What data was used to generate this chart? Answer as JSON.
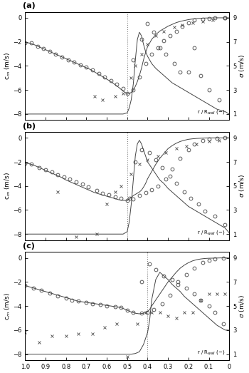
{
  "panels": [
    {
      "label": "(a)",
      "vline_x": 0.5,
      "cm_line_x": [
        1.0,
        0.98,
        0.96,
        0.94,
        0.92,
        0.9,
        0.88,
        0.86,
        0.84,
        0.82,
        0.8,
        0.78,
        0.76,
        0.74,
        0.72,
        0.7,
        0.68,
        0.66,
        0.64,
        0.62,
        0.6,
        0.58,
        0.56,
        0.54,
        0.52,
        0.5,
        0.49,
        0.48,
        0.47,
        0.46,
        0.45,
        0.44,
        0.43,
        0.42,
        0.41,
        0.4,
        0.38,
        0.36,
        0.34,
        0.32,
        0.3,
        0.28,
        0.26,
        0.24,
        0.22,
        0.2,
        0.18,
        0.16,
        0.14,
        0.12,
        0.1,
        0.08,
        0.06,
        0.04,
        0.02,
        0.01,
        0.0
      ],
      "cm_line_y": [
        -2.05,
        -2.1,
        -2.2,
        -2.35,
        -2.5,
        -2.65,
        -2.8,
        -2.95,
        -3.1,
        -3.25,
        -3.4,
        -3.55,
        -3.7,
        -3.85,
        -4.0,
        -4.15,
        -4.3,
        -4.5,
        -4.7,
        -4.9,
        -5.1,
        -5.3,
        -5.55,
        -5.8,
        -6.1,
        -6.3,
        -6.3,
        -6.2,
        -6.0,
        -5.7,
        -5.3,
        -4.8,
        -4.2,
        -3.5,
        -2.9,
        -2.4,
        -1.8,
        -1.4,
        -1.1,
        -0.9,
        -0.7,
        -0.55,
        -0.4,
        -0.3,
        -0.22,
        -0.15,
        -0.1,
        -0.06,
        -0.04,
        -0.02,
        -0.01,
        -0.005,
        0.0,
        0.0,
        0.0,
        0.0,
        0.0
      ],
      "sigma_line_x": [
        1.0,
        0.98,
        0.96,
        0.94,
        0.92,
        0.9,
        0.88,
        0.86,
        0.84,
        0.82,
        0.8,
        0.78,
        0.76,
        0.74,
        0.72,
        0.7,
        0.68,
        0.66,
        0.64,
        0.62,
        0.6,
        0.58,
        0.56,
        0.54,
        0.52,
        0.5,
        0.49,
        0.48,
        0.47,
        0.46,
        0.45,
        0.44,
        0.43,
        0.42,
        0.41,
        0.4,
        0.38,
        0.36,
        0.34,
        0.32,
        0.3,
        0.28,
        0.26,
        0.24,
        0.22,
        0.2,
        0.18,
        0.16,
        0.14,
        0.12,
        0.1,
        0.08,
        0.06,
        0.04,
        0.02,
        0.01,
        0.0
      ],
      "sigma_line_y": [
        1.0,
        1.0,
        1.0,
        1.0,
        1.0,
        1.0,
        1.0,
        1.0,
        1.0,
        1.0,
        1.0,
        1.0,
        1.0,
        1.0,
        1.0,
        1.0,
        1.0,
        1.0,
        1.0,
        1.0,
        1.0,
        1.0,
        1.0,
        1.0,
        1.0,
        1.1,
        1.5,
        2.2,
        3.5,
        5.5,
        7.2,
        7.8,
        7.5,
        6.8,
        6.2,
        5.8,
        5.2,
        4.8,
        4.5,
        4.2,
        3.9,
        3.6,
        3.4,
        3.2,
        3.0,
        2.8,
        2.6,
        2.4,
        2.2,
        2.0,
        1.8,
        1.6,
        1.4,
        1.3,
        1.2,
        1.1,
        1.0
      ],
      "cm_circles_x": [
        1.0,
        0.97,
        0.94,
        0.91,
        0.88,
        0.85,
        0.82,
        0.79,
        0.76,
        0.73,
        0.7,
        0.67,
        0.64,
        0.61,
        0.58,
        0.55,
        0.52,
        0.5,
        0.47,
        0.44,
        0.41,
        0.38,
        0.35,
        0.32,
        0.29,
        0.26,
        0.23,
        0.2,
        0.17,
        0.13,
        0.1,
        0.07,
        0.02
      ],
      "cm_circles_y": [
        -2.05,
        -2.1,
        -2.35,
        -2.55,
        -2.8,
        -3.0,
        -3.25,
        -3.5,
        -3.7,
        -3.9,
        -4.1,
        -4.35,
        -4.65,
        -4.9,
        -5.2,
        -5.5,
        -5.9,
        -6.3,
        -6.0,
        -4.9,
        -3.8,
        -3.0,
        -2.5,
        -1.9,
        -1.5,
        -1.1,
        -0.7,
        -0.4,
        -0.2,
        -0.1,
        -0.05,
        -0.02,
        0.0
      ],
      "sigma_circles_x": [
        0.47,
        0.43,
        0.4,
        0.37,
        0.34,
        0.31,
        0.27,
        0.24,
        0.2,
        0.17,
        0.14,
        0.1,
        0.05,
        0.02
      ],
      "sigma_circles_y": [
        5.5,
        7.2,
        8.5,
        7.8,
        6.5,
        6.0,
        5.2,
        4.5,
        4.5,
        6.5,
        4.2,
        3.0,
        2.2,
        9.0
      ],
      "sigma_crosses_x": [
        0.66,
        0.62,
        0.56,
        0.52,
        0.48,
        0.46,
        0.43,
        0.4,
        0.36,
        0.32,
        0.27,
        0.23,
        0.18,
        0.13,
        0.08
      ],
      "sigma_crosses_y": [
        -6.5,
        -6.8,
        -6.5,
        -6.3,
        -5.0,
        -4.0,
        -3.0,
        -2.2,
        -1.5,
        -1.1,
        -0.8,
        -0.6,
        -0.4,
        -0.3,
        -0.2
      ]
    },
    {
      "label": "(b)",
      "vline_x": 0.5,
      "cm_line_x": [
        1.0,
        0.98,
        0.96,
        0.94,
        0.92,
        0.9,
        0.88,
        0.86,
        0.84,
        0.82,
        0.8,
        0.78,
        0.76,
        0.74,
        0.72,
        0.7,
        0.68,
        0.66,
        0.64,
        0.62,
        0.6,
        0.58,
        0.56,
        0.54,
        0.52,
        0.5,
        0.49,
        0.48,
        0.47,
        0.46,
        0.45,
        0.44,
        0.43,
        0.42,
        0.41,
        0.4,
        0.38,
        0.36,
        0.34,
        0.32,
        0.3,
        0.28,
        0.26,
        0.24,
        0.22,
        0.2,
        0.18,
        0.16,
        0.14,
        0.12,
        0.1,
        0.08,
        0.06,
        0.04,
        0.02,
        0.01,
        0.0
      ],
      "cm_line_y": [
        -2.1,
        -2.15,
        -2.25,
        -2.4,
        -2.55,
        -2.7,
        -2.85,
        -3.0,
        -3.15,
        -3.3,
        -3.5,
        -3.65,
        -3.8,
        -3.95,
        -4.1,
        -4.25,
        -4.4,
        -4.55,
        -4.65,
        -4.75,
        -4.85,
        -4.95,
        -5.05,
        -5.15,
        -5.2,
        -5.2,
        -5.1,
        -4.95,
        -4.8,
        -4.7,
        -4.6,
        -4.5,
        -4.35,
        -4.1,
        -3.8,
        -3.4,
        -2.8,
        -2.2,
        -1.7,
        -1.3,
        -0.9,
        -0.65,
        -0.45,
        -0.3,
        -0.2,
        -0.12,
        -0.08,
        -0.05,
        -0.03,
        -0.01,
        0.0,
        0.0,
        0.0,
        0.0,
        0.0,
        0.0,
        0.0
      ],
      "sigma_line_x": [
        1.0,
        0.98,
        0.96,
        0.94,
        0.92,
        0.9,
        0.88,
        0.86,
        0.84,
        0.82,
        0.8,
        0.78,
        0.76,
        0.74,
        0.72,
        0.7,
        0.68,
        0.66,
        0.64,
        0.62,
        0.6,
        0.58,
        0.56,
        0.54,
        0.52,
        0.5,
        0.49,
        0.48,
        0.47,
        0.46,
        0.45,
        0.44,
        0.43,
        0.42,
        0.41,
        0.4,
        0.38,
        0.36,
        0.34,
        0.32,
        0.3,
        0.28,
        0.26,
        0.24,
        0.22,
        0.2,
        0.18,
        0.16,
        0.14,
        0.12,
        0.1,
        0.08,
        0.06,
        0.04,
        0.02,
        0.01,
        0.0
      ],
      "sigma_line_y": [
        1.0,
        1.0,
        1.0,
        1.0,
        1.0,
        1.0,
        1.0,
        1.0,
        1.0,
        1.0,
        1.0,
        1.0,
        1.0,
        1.0,
        1.0,
        1.0,
        1.0,
        1.0,
        1.0,
        1.0,
        1.0,
        1.0,
        1.0,
        1.0,
        1.0,
        1.2,
        2.0,
        3.5,
        5.5,
        7.5,
        8.5,
        8.8,
        8.5,
        8.0,
        7.5,
        7.0,
        6.5,
        6.0,
        5.5,
        5.2,
        4.8,
        4.5,
        4.2,
        3.9,
        3.6,
        3.3,
        3.1,
        2.9,
        2.7,
        2.5,
        2.3,
        2.1,
        1.9,
        1.7,
        1.5,
        1.3,
        1.1
      ],
      "cm_circles_x": [
        1.0,
        0.97,
        0.93,
        0.9,
        0.87,
        0.84,
        0.81,
        0.78,
        0.75,
        0.72,
        0.69,
        0.65,
        0.62,
        0.59,
        0.56,
        0.53,
        0.5,
        0.47,
        0.44,
        0.41,
        0.38,
        0.35,
        0.31,
        0.28,
        0.24,
        0.2,
        0.17,
        0.13,
        0.1,
        0.06,
        0.02
      ],
      "cm_circles_y": [
        -2.1,
        -2.2,
        -2.45,
        -2.65,
        -2.85,
        -3.05,
        -3.25,
        -3.45,
        -3.65,
        -3.85,
        -4.1,
        -4.35,
        -4.6,
        -4.75,
        -4.9,
        -5.05,
        -5.2,
        -5.1,
        -4.8,
        -4.55,
        -4.3,
        -4.0,
        -3.4,
        -2.6,
        -1.7,
        -1.0,
        -0.5,
        -0.2,
        -0.08,
        -0.02,
        0.0
      ],
      "sigma_circles_x": [
        0.49,
        0.46,
        0.43,
        0.39,
        0.36,
        0.33,
        0.29,
        0.26,
        0.22,
        0.19,
        0.15,
        0.12,
        0.07,
        0.02
      ],
      "sigma_circles_y": [
        4.0,
        7.0,
        8.0,
        7.8,
        7.2,
        6.5,
        5.8,
        5.2,
        4.5,
        4.0,
        3.5,
        2.9,
        2.5,
        1.8
      ],
      "sigma_crosses_x": [
        0.84,
        0.75,
        0.65,
        0.6,
        0.56,
        0.53,
        0.48,
        0.44,
        0.4,
        0.35,
        0.31,
        0.26,
        0.21,
        0.16,
        0.1,
        0.05
      ],
      "sigma_crosses_y": [
        -4.5,
        -8.2,
        -8.0,
        -5.5,
        -4.5,
        -4.0,
        -3.0,
        -2.2,
        -1.8,
        -1.5,
        -1.2,
        -0.9,
        -0.7,
        -0.5,
        -0.3,
        -0.2
      ]
    },
    {
      "label": "(c)",
      "vline_x": 0.4,
      "cm_line_x": [
        1.0,
        0.98,
        0.96,
        0.94,
        0.92,
        0.9,
        0.88,
        0.86,
        0.84,
        0.82,
        0.8,
        0.78,
        0.76,
        0.74,
        0.72,
        0.7,
        0.68,
        0.66,
        0.64,
        0.62,
        0.6,
        0.58,
        0.56,
        0.54,
        0.52,
        0.5,
        0.48,
        0.46,
        0.44,
        0.42,
        0.4,
        0.39,
        0.38,
        0.36,
        0.34,
        0.32,
        0.3,
        0.28,
        0.26,
        0.24,
        0.22,
        0.2,
        0.18,
        0.16,
        0.14,
        0.12,
        0.1,
        0.08,
        0.06,
        0.04,
        0.02,
        0.01,
        0.0
      ],
      "cm_line_y": [
        -2.3,
        -2.4,
        -2.5,
        -2.6,
        -2.7,
        -2.8,
        -2.9,
        -3.0,
        -3.1,
        -3.2,
        -3.3,
        -3.4,
        -3.5,
        -3.6,
        -3.65,
        -3.7,
        -3.75,
        -3.8,
        -3.85,
        -3.9,
        -3.95,
        -4.0,
        -4.05,
        -4.1,
        -4.2,
        -4.35,
        -4.5,
        -4.6,
        -4.65,
        -4.6,
        -4.45,
        -4.3,
        -4.0,
        -3.5,
        -3.0,
        -2.5,
        -2.0,
        -1.6,
        -1.2,
        -0.85,
        -0.6,
        -0.4,
        -0.25,
        -0.15,
        -0.09,
        -0.05,
        -0.03,
        -0.02,
        -0.01,
        0.0,
        0.0,
        0.0,
        0.0
      ],
      "sigma_line_x": [
        1.0,
        0.98,
        0.96,
        0.94,
        0.92,
        0.9,
        0.88,
        0.86,
        0.84,
        0.82,
        0.8,
        0.78,
        0.76,
        0.74,
        0.72,
        0.7,
        0.68,
        0.66,
        0.64,
        0.62,
        0.6,
        0.58,
        0.56,
        0.54,
        0.52,
        0.5,
        0.48,
        0.46,
        0.44,
        0.42,
        0.4,
        0.39,
        0.38,
        0.36,
        0.34,
        0.32,
        0.3,
        0.28,
        0.26,
        0.24,
        0.22,
        0.2,
        0.18,
        0.16,
        0.14,
        0.12,
        0.1,
        0.08,
        0.06,
        0.04,
        0.02,
        0.01,
        0.0
      ],
      "sigma_line_y": [
        1.0,
        1.0,
        1.0,
        1.0,
        1.0,
        1.0,
        1.0,
        1.0,
        1.0,
        1.0,
        1.0,
        1.0,
        1.0,
        1.0,
        1.0,
        1.0,
        1.0,
        1.0,
        1.0,
        1.0,
        1.0,
        1.0,
        1.0,
        1.0,
        1.0,
        1.0,
        1.0,
        1.05,
        1.2,
        1.8,
        2.8,
        3.8,
        5.5,
        7.2,
        7.8,
        7.5,
        7.2,
        6.8,
        6.5,
        6.2,
        5.8,
        5.5,
        5.2,
        4.9,
        4.6,
        4.3,
        4.0,
        3.7,
        3.4,
        3.2,
        3.0,
        3.0,
        3.0
      ],
      "cm_circles_x": [
        1.0,
        0.96,
        0.92,
        0.88,
        0.84,
        0.8,
        0.77,
        0.74,
        0.7,
        0.67,
        0.63,
        0.6,
        0.56,
        0.53,
        0.5,
        0.47,
        0.43,
        0.4,
        0.37,
        0.33,
        0.29,
        0.25,
        0.21,
        0.17,
        0.13,
        0.1,
        0.07,
        0.03
      ],
      "cm_circles_y": [
        -2.3,
        -2.5,
        -2.7,
        -2.95,
        -3.15,
        -3.35,
        -3.5,
        -3.6,
        -3.7,
        -3.8,
        -3.9,
        -4.0,
        -4.05,
        -4.1,
        -4.35,
        -4.55,
        -4.6,
        -4.5,
        -4.3,
        -3.8,
        -3.1,
        -2.2,
        -1.4,
        -0.85,
        -0.4,
        -0.2,
        -0.07,
        0.0
      ],
      "sigma_circles_x": [
        0.43,
        0.39,
        0.36,
        0.32,
        0.28,
        0.25,
        0.21,
        0.17,
        0.14,
        0.1,
        0.07,
        0.03
      ],
      "sigma_circles_y": [
        7.0,
        8.5,
        8.0,
        7.5,
        7.2,
        7.0,
        6.5,
        6.0,
        5.5,
        5.0,
        4.5,
        3.5
      ],
      "sigma_crosses_x": [
        1.0,
        0.93,
        0.87,
        0.8,
        0.74,
        0.67,
        0.61,
        0.55,
        0.5,
        0.45,
        0.41,
        0.38,
        0.34,
        0.3,
        0.26,
        0.22,
        0.18,
        0.14,
        0.1,
        0.06,
        0.02
      ],
      "sigma_crosses_y": [
        -6.2,
        -7.0,
        -6.5,
        -6.5,
        -6.3,
        -6.3,
        -5.8,
        -5.5,
        -8.2,
        -5.5,
        -4.5,
        -4.5,
        -4.5,
        -4.8,
        -5.0,
        -4.5,
        -4.5,
        -3.5,
        -3.0,
        -3.0,
        -3.0
      ]
    }
  ],
  "ylim_cm": [
    -8.5,
    0.5
  ],
  "ylim_sigma": [
    0.5,
    9.5
  ],
  "yticks_cm": [
    0.0,
    -2.0,
    -4.0,
    -6.0,
    -8.0
  ],
  "yticks_sigma": [
    1.0,
    3.0,
    5.0,
    7.0,
    9.0
  ],
  "xticks": [
    1.0,
    0.9,
    0.8,
    0.7,
    0.6,
    0.5,
    0.4,
    0.3,
    0.2,
    0.1,
    0.0
  ],
  "line_color": "#444444",
  "bg_color": "#ffffff"
}
